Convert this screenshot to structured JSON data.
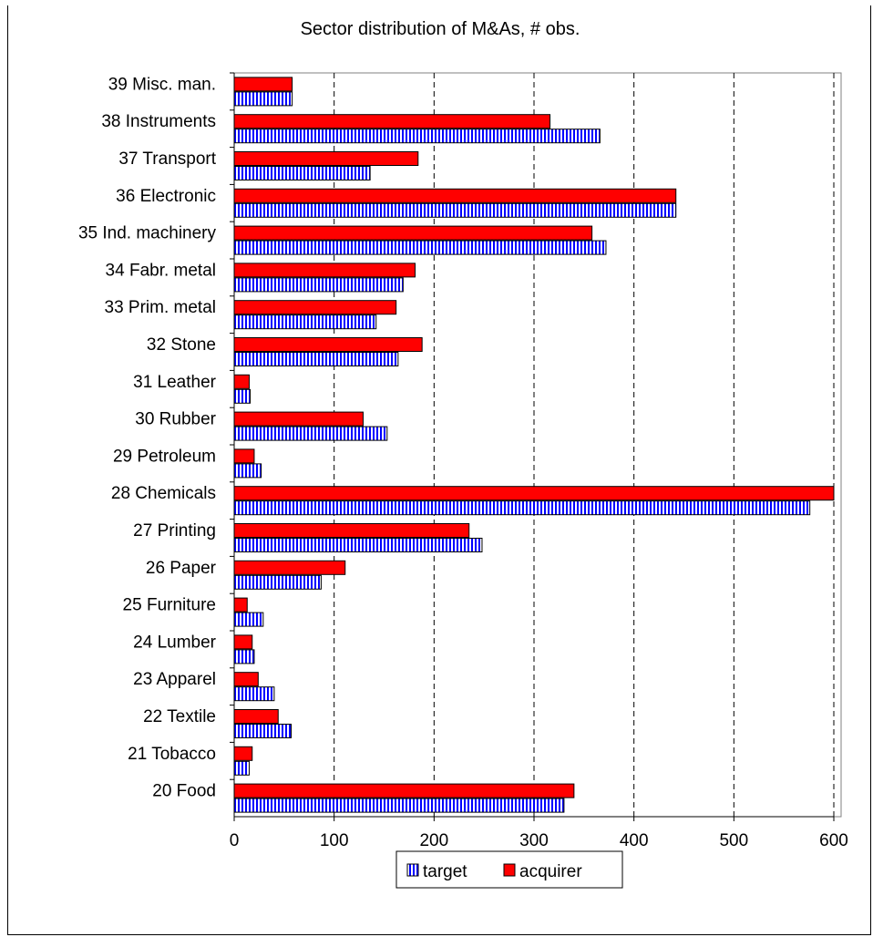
{
  "chart_data": {
    "type": "bar",
    "orientation": "horizontal",
    "title": "Sector distribution of M&As, # obs.",
    "categories": [
      "39 Misc. man.",
      "38 Instruments",
      "37 Transport",
      "36 Electronic",
      "35 Ind. machinery",
      "34 Fabr. metal",
      "33 Prim. metal",
      "32 Stone",
      "31 Leather",
      "30 Rubber",
      "29 Petroleum",
      "28 Chemicals",
      "27 Printing",
      "26 Paper",
      "25 Furniture",
      "24 Lumber",
      "23 Apparel",
      "22 Textile",
      "21 Tobacco",
      "20 Food"
    ],
    "series": [
      {
        "name": "target",
        "color": "#0000ff",
        "pattern": "vertical-stripes",
        "values": [
          58,
          366,
          136,
          442,
          372,
          169,
          142,
          164,
          16,
          153,
          27,
          576,
          248,
          87,
          29,
          20,
          40,
          57,
          15,
          330
        ]
      },
      {
        "name": "acquirer",
        "color": "#ff0000",
        "pattern": "solid",
        "values": [
          58,
          316,
          184,
          442,
          358,
          181,
          162,
          188,
          15,
          129,
          20,
          600,
          235,
          111,
          13,
          18,
          24,
          44,
          18,
          340
        ]
      }
    ],
    "xlim": [
      0,
      600
    ],
    "xticks": [
      0,
      100,
      200,
      300,
      400,
      500,
      600
    ],
    "xlabel": "",
    "ylabel": "",
    "grid": "vertical dashed",
    "legend_position": "bottom-center"
  }
}
